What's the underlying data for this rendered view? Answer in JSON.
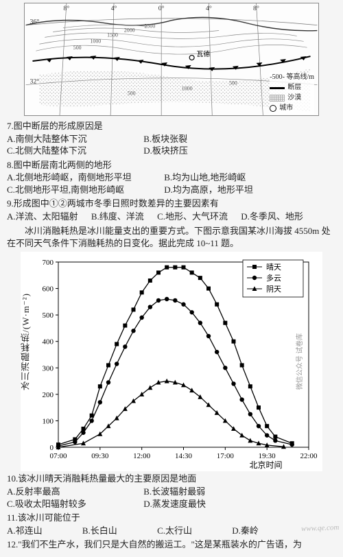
{
  "map": {
    "lon_ticks": [
      "8°",
      "4°",
      "0°",
      "4°",
      "8°"
    ],
    "lat_ticks": [
      "36°",
      "32°"
    ],
    "city_label": "瓦德",
    "contour_values": [
      "500",
      "1000",
      "1500",
      "2000",
      "2500",
      "500",
      "1000",
      "500"
    ],
    "legend": {
      "contour": "-500- 等高线/m",
      "fault": "断层",
      "desert": "沙漠",
      "city": "城市"
    },
    "colors": {
      "land": "#fdfdfd",
      "grid": "#777",
      "contour": "#777",
      "fault": "#000",
      "desert": "#bcbcbc"
    }
  },
  "q7": {
    "stem": "7.图中断层的形成原因是",
    "A": "A.南侧大陆整体下沉",
    "B": "B.板块张裂",
    "C": "C.北侧大陆整体下沉",
    "D": "D.板块挤压"
  },
  "q8": {
    "stem": "8.图中断层南北两侧的地形",
    "A": "A.北侧地形崎岖，南侧地形平坦",
    "B": "B.均为山地,地形崎岖",
    "C": "C.北侧地形平坦,南侧地形崎岖",
    "D": "D.均为高原，地形平坦"
  },
  "q9": {
    "stem": "9.形成图中①②两城市冬季日照时数差异的主要因素有",
    "A": "A.洋流、太阳辐射",
    "B": "B.纬度、洋流",
    "C": "C.地形、大气环流",
    "D": "D.冬季风、地形"
  },
  "intro": "冰川消融耗热是冰川能量支出的重要方式。下图示意我国某冰川海拔 4550m 处在不同天气条件下消融耗热的日变化。据此完成 10~11 题。",
  "chart": {
    "type": "line",
    "x_ticks": [
      "07:00",
      "09:30",
      "12:00",
      "14:30",
      "17:00",
      "19:30",
      "22:00"
    ],
    "x_label": "北京时间",
    "y_label": "冰川消融耗热/(W·m⁻²)",
    "ylim": [
      0,
      700
    ],
    "ytick_step": 100,
    "series": [
      {
        "name": "晴天",
        "marker": "square",
        "color": "#000000",
        "points": [
          [
            7.0,
            10
          ],
          [
            8.0,
            30
          ],
          [
            8.5,
            70
          ],
          [
            9.0,
            120
          ],
          [
            9.5,
            230
          ],
          [
            10.0,
            310
          ],
          [
            10.5,
            390
          ],
          [
            11.0,
            460
          ],
          [
            11.5,
            520
          ],
          [
            12.0,
            585
          ],
          [
            12.5,
            630
          ],
          [
            13.0,
            660
          ],
          [
            13.5,
            680
          ],
          [
            14.0,
            680
          ],
          [
            14.5,
            680
          ],
          [
            15.0,
            660
          ],
          [
            15.5,
            640
          ],
          [
            16.0,
            600
          ],
          [
            16.5,
            540
          ],
          [
            17.0,
            470
          ],
          [
            17.5,
            400
          ],
          [
            18.0,
            310
          ],
          [
            18.5,
            230
          ],
          [
            19.0,
            150
          ],
          [
            19.5,
            80
          ],
          [
            20.0,
            40
          ],
          [
            21.0,
            15
          ]
        ]
      },
      {
        "name": "多云",
        "marker": "circle",
        "color": "#000000",
        "points": [
          [
            7.0,
            5
          ],
          [
            8.0,
            20
          ],
          [
            8.5,
            55
          ],
          [
            9.0,
            100
          ],
          [
            9.5,
            170
          ],
          [
            10.0,
            245
          ],
          [
            10.5,
            315
          ],
          [
            11.0,
            380
          ],
          [
            11.5,
            440
          ],
          [
            12.0,
            490
          ],
          [
            12.5,
            530
          ],
          [
            13.0,
            555
          ],
          [
            13.5,
            560
          ],
          [
            14.0,
            555
          ],
          [
            14.5,
            540
          ],
          [
            15.0,
            510
          ],
          [
            15.5,
            470
          ],
          [
            16.0,
            420
          ],
          [
            16.5,
            360
          ],
          [
            17.0,
            300
          ],
          [
            17.5,
            240
          ],
          [
            18.0,
            180
          ],
          [
            18.5,
            125
          ],
          [
            19.0,
            80
          ],
          [
            19.5,
            45
          ],
          [
            20.0,
            25
          ],
          [
            21.0,
            10
          ]
        ]
      },
      {
        "name": "阴天",
        "marker": "triangle",
        "color": "#000000",
        "points": [
          [
            7.0,
            0
          ],
          [
            8.5,
            15
          ],
          [
            9.5,
            50
          ],
          [
            10.0,
            80
          ],
          [
            10.5,
            110
          ],
          [
            11.0,
            145
          ],
          [
            11.5,
            175
          ],
          [
            12.0,
            200
          ],
          [
            12.5,
            225
          ],
          [
            13.0,
            245
          ],
          [
            13.5,
            250
          ],
          [
            14.0,
            245
          ],
          [
            14.5,
            235
          ],
          [
            15.0,
            215
          ],
          [
            15.5,
            190
          ],
          [
            16.0,
            160
          ],
          [
            16.5,
            130
          ],
          [
            17.0,
            100
          ],
          [
            17.5,
            70
          ],
          [
            18.0,
            45
          ],
          [
            18.5,
            25
          ],
          [
            19.0,
            15
          ],
          [
            19.5,
            8
          ],
          [
            20.5,
            2
          ]
        ]
      }
    ],
    "legend_labels": [
      "晴天",
      "多云",
      "阴天"
    ],
    "side_text": "微信公众号 试卷库",
    "axis_color": "#000",
    "grid_color": "#cccccc",
    "bg": "#ffffff"
  },
  "q10": {
    "stem": "10.该冰川晴天消融耗热量最大的主要原因是地面",
    "A": "A.反射率最高",
    "B": "B.长波辐射最弱",
    "C": "C.吸收太阳辐射较多",
    "D": "D.蒸发速度最快"
  },
  "q11": {
    "stem": "11.该冰川可能位于",
    "A": "A.祁连山",
    "B": "B.长白山",
    "C": "C.太行山",
    "D": "D.秦岭"
  },
  "q12": {
    "stem": "12.\"我们不生产水，我们只是大自然的搬运工。\"这是某瓶装水的广告语，为"
  },
  "watermark": "www.qe.com"
}
